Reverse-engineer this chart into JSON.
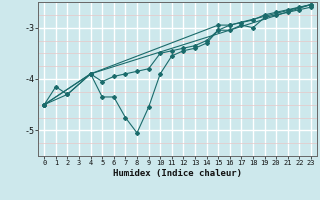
{
  "xlabel": "Humidex (Indice chaleur)",
  "background_color": "#cde8ec",
  "grid_color_major": "#ffffff",
  "grid_color_minor": "#e8c8c8",
  "line_color": "#1a6b6b",
  "xlim": [
    -0.5,
    23.5
  ],
  "ylim": [
    -5.5,
    -2.5
  ],
  "yticks": [
    -5,
    -4,
    -3
  ],
  "xticks": [
    0,
    1,
    2,
    3,
    4,
    5,
    6,
    7,
    8,
    9,
    10,
    11,
    12,
    13,
    14,
    15,
    16,
    17,
    18,
    19,
    20,
    21,
    22,
    23
  ],
  "lines": [
    {
      "x": [
        0,
        1,
        2,
        4,
        5,
        6,
        7,
        8,
        9,
        10,
        11,
        12,
        13,
        14,
        15,
        16,
        17,
        18,
        19,
        20,
        21,
        22,
        23
      ],
      "y": [
        -4.5,
        -4.15,
        -4.3,
        -3.9,
        -4.35,
        -4.35,
        -4.75,
        -5.05,
        -4.55,
        -3.9,
        -3.55,
        -3.45,
        -3.4,
        -3.3,
        -3.05,
        -3.05,
        -2.95,
        -3.0,
        -2.8,
        -2.75,
        -2.7,
        -2.65,
        -2.6
      ]
    },
    {
      "x": [
        0,
        2,
        4,
        5,
        6,
        7,
        8,
        9,
        10,
        11,
        12,
        13,
        14,
        15,
        16,
        17,
        18,
        19,
        20,
        21,
        22,
        23
      ],
      "y": [
        -4.5,
        -4.3,
        -3.9,
        -4.05,
        -3.95,
        -3.9,
        -3.85,
        -3.8,
        -3.5,
        -3.45,
        -3.4,
        -3.35,
        -3.25,
        -3.05,
        -2.95,
        -2.9,
        -2.85,
        -2.75,
        -2.7,
        -2.65,
        -2.6,
        -2.55
      ]
    },
    {
      "x": [
        0,
        4,
        23
      ],
      "y": [
        -4.5,
        -3.9,
        -2.55
      ]
    },
    {
      "x": [
        0,
        4,
        15,
        16,
        23
      ],
      "y": [
        -4.5,
        -3.9,
        -2.95,
        -2.95,
        -2.55
      ]
    }
  ]
}
